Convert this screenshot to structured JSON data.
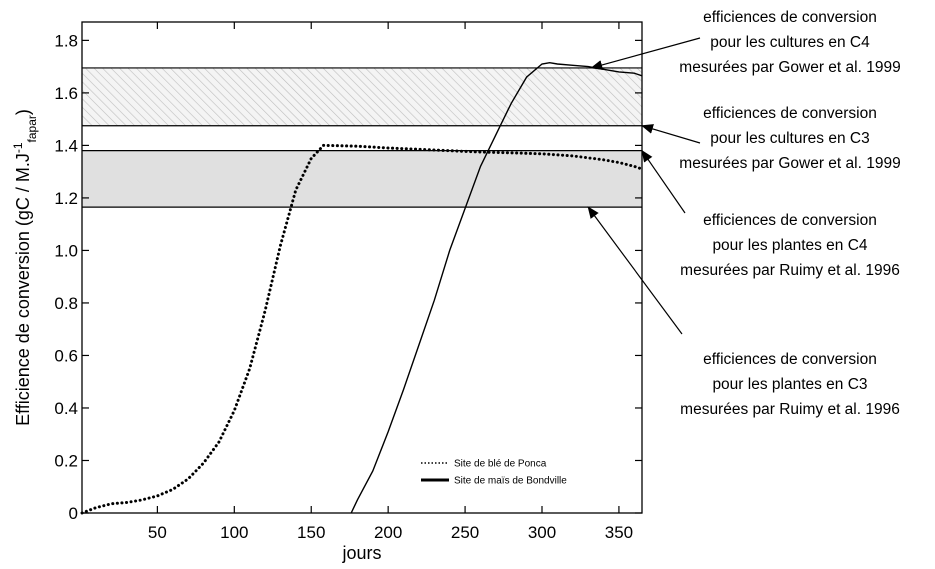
{
  "chart_data": {
    "type": "line",
    "title": "",
    "xlabel": "jours",
    "ylabel": {
      "main": "Efficience de conversion (gC / M.J",
      "sup": "-1",
      "sub": "fapar",
      "close": ")"
    },
    "xlim": [
      1,
      365
    ],
    "ylim": [
      0,
      1.87
    ],
    "xticks": [
      50,
      100,
      150,
      200,
      250,
      300,
      350
    ],
    "yticks": [
      0,
      0.2,
      0.4,
      0.6,
      0.8,
      1.0,
      1.2,
      1.4,
      1.6,
      1.8
    ],
    "ytick_labels": [
      "0",
      "0.2",
      "0.4",
      "0.6",
      "0.8",
      "1.0",
      "1.2",
      "1.4",
      "1.6",
      "1.8"
    ],
    "grid": false,
    "legend_position": "bottom-right",
    "bands": [
      {
        "name": "C4 cultures (Gower)",
        "y0": 1.475,
        "y1": 1.695,
        "fill": "hatched"
      },
      {
        "name": "C4 plantes (Ruimy)",
        "y0": 1.165,
        "y1": 1.38,
        "fill": "#e0e0e0"
      }
    ],
    "series": [
      {
        "name": "Site de blé de Ponca",
        "style": "dotted",
        "x": [
          1,
          10,
          20,
          30,
          40,
          50,
          60,
          70,
          80,
          90,
          100,
          110,
          120,
          130,
          140,
          150,
          158,
          160,
          180,
          200,
          220,
          240,
          260,
          280,
          300,
          320,
          340,
          350,
          360,
          365
        ],
        "y": [
          0.0,
          0.02,
          0.035,
          0.04,
          0.05,
          0.065,
          0.09,
          0.13,
          0.19,
          0.27,
          0.39,
          0.55,
          0.77,
          1.02,
          1.23,
          1.35,
          1.4,
          1.4,
          1.397,
          1.39,
          1.385,
          1.38,
          1.375,
          1.372,
          1.368,
          1.36,
          1.345,
          1.335,
          1.32,
          1.31
        ]
      },
      {
        "name": "Site de maïs de Bondville",
        "style": "solid",
        "x": [
          176,
          180,
          190,
          200,
          210,
          220,
          230,
          240,
          250,
          260,
          270,
          280,
          290,
          300,
          305,
          310,
          320,
          330,
          340,
          350,
          360,
          365
        ],
        "y": [
          0.0,
          0.05,
          0.16,
          0.31,
          0.47,
          0.64,
          0.81,
          1.0,
          1.16,
          1.32,
          1.44,
          1.56,
          1.66,
          1.71,
          1.715,
          1.71,
          1.705,
          1.7,
          1.69,
          1.68,
          1.675,
          1.665
        ]
      }
    ],
    "annotations": [
      {
        "lines": [
          "efficiences de conversion",
          "pour les cultures en C4",
          "mesurées par Gower et al. 1999"
        ],
        "point_x": 332,
        "point_y": 1.695
      },
      {
        "lines": [
          "efficiences de conversion",
          "pour les cultures en C3",
          "mesurées par Gower et al. 1999"
        ],
        "point_x": 365,
        "point_y": 1.475
      },
      {
        "lines": [
          "efficiences de conversion",
          "pour les plantes en C4",
          "mesurées par Ruimy et al. 1996"
        ],
        "point_x": 365,
        "point_y": 1.38
      },
      {
        "lines": [
          "efficiences de conversion",
          "pour les plantes en C3",
          "mesurées par Ruimy et al. 1996"
        ],
        "point_x": 330,
        "point_y": 1.165
      }
    ]
  }
}
